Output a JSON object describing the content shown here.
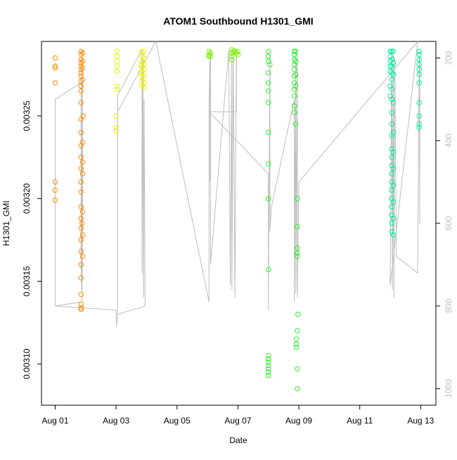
{
  "chart_data": {
    "type": "scatter",
    "title": "ATOM1 Southbound H1301_GMI",
    "xlabel": "Date",
    "ylabel": "H1301_GMI",
    "x_tick_labels": [
      "Aug 01",
      "Aug 03",
      "Aug 05",
      "Aug 07",
      "Aug 09",
      "Aug 11",
      "Aug 13"
    ],
    "x_tick_days": [
      1,
      3,
      5,
      7,
      9,
      11,
      13
    ],
    "xlim_days": [
      0.55,
      13.5
    ],
    "y_tick_labels": [
      "0.00310",
      "0.00315",
      "0.00320",
      "0.00325"
    ],
    "y_ticks": [
      0.0031,
      0.00315,
      0.0032,
      0.00325
    ],
    "ylim": [
      0.003075,
      0.003295
    ],
    "y2_tick_labels": [
      "200",
      "400",
      "600",
      "800",
      "1000"
    ],
    "y2_ticks": [
      200,
      400,
      600,
      800,
      1000
    ],
    "y2lim": [
      1040,
      160
    ],
    "y2_label_color": "#bdbdbd",
    "grid": false,
    "legend": "none",
    "line_color": "#bdbdbd",
    "series": [
      {
        "color": "#ff8c00",
        "points": [
          [
            1.0,
            0.003285
          ],
          [
            1.0,
            0.00328
          ],
          [
            1.0,
            0.003279
          ],
          [
            1.0,
            0.00327
          ],
          [
            1.0,
            0.00321
          ],
          [
            1.0,
            0.003205
          ],
          [
            1.0,
            0.003199
          ],
          [
            1.85,
            0.003289
          ],
          [
            1.85,
            0.003287
          ],
          [
            1.85,
            0.003284
          ],
          [
            1.85,
            0.003282
          ],
          [
            1.85,
            0.00328
          ],
          [
            1.85,
            0.003278
          ],
          [
            1.85,
            0.003276
          ],
          [
            1.85,
            0.003274
          ],
          [
            1.85,
            0.003271
          ],
          [
            1.85,
            0.003268
          ],
          [
            1.85,
            0.003265
          ],
          [
            1.85,
            0.003258
          ],
          [
            1.85,
            0.003248
          ],
          [
            1.85,
            0.00324
          ],
          [
            1.85,
            0.003232
          ],
          [
            1.85,
            0.003225
          ],
          [
            1.85,
            0.003218
          ],
          [
            1.85,
            0.00321
          ],
          [
            1.85,
            0.003204
          ],
          [
            1.85,
            0.003195
          ],
          [
            1.85,
            0.003188
          ],
          [
            1.85,
            0.003182
          ],
          [
            1.85,
            0.003175
          ],
          [
            1.85,
            0.003168
          ],
          [
            1.85,
            0.00316
          ],
          [
            1.85,
            0.003152
          ],
          [
            1.85,
            0.003142
          ],
          [
            1.85,
            0.003136
          ],
          [
            1.85,
            0.003134
          ],
          [
            1.85,
            0.003133
          ],
          [
            1.9,
            0.003288
          ],
          [
            1.9,
            0.003283
          ],
          [
            1.9,
            0.003279
          ],
          [
            1.9,
            0.003272
          ],
          [
            1.92,
            0.00325
          ],
          [
            1.9,
            0.003234
          ],
          [
            1.9,
            0.003222
          ],
          [
            1.9,
            0.003215
          ],
          [
            1.9,
            0.003192
          ],
          [
            1.9,
            0.003178
          ],
          [
            1.9,
            0.003165
          ],
          [
            1.88,
            0.003185
          ]
        ]
      },
      {
        "color": "#e6f000",
        "points": [
          [
            3.03,
            0.003289
          ],
          [
            3.03,
            0.003286
          ],
          [
            3.03,
            0.003283
          ],
          [
            3.03,
            0.00328
          ],
          [
            3.03,
            0.003277
          ],
          [
            3.03,
            0.003268
          ],
          [
            3.03,
            0.003266
          ],
          [
            3.0,
            0.00325
          ],
          [
            3.0,
            0.003243
          ],
          [
            3.0,
            0.003241
          ],
          [
            3.85,
            0.003289
          ],
          [
            3.85,
            0.003286
          ],
          [
            3.85,
            0.003283
          ],
          [
            3.85,
            0.00328
          ],
          [
            3.85,
            0.003277
          ],
          [
            3.85,
            0.003274
          ],
          [
            3.85,
            0.003271
          ],
          [
            3.85,
            0.003268
          ],
          [
            3.92,
            0.003289
          ],
          [
            3.92,
            0.003285
          ],
          [
            3.92,
            0.003281
          ],
          [
            3.92,
            0.003278
          ],
          [
            3.92,
            0.003274
          ],
          [
            3.92,
            0.00327
          ],
          [
            3.92,
            0.003267
          ],
          [
            3.8,
            0.003276
          ],
          [
            3.8,
            0.003281
          ]
        ]
      },
      {
        "color": "#7cf000",
        "points": [
          [
            6.05,
            0.003289
          ],
          [
            6.05,
            0.003287
          ],
          [
            6.05,
            0.003286
          ],
          [
            6.1,
            0.003288
          ],
          [
            6.1,
            0.003286
          ],
          [
            6.8,
            0.00329
          ],
          [
            6.8,
            0.003288
          ],
          [
            6.8,
            0.003286
          ],
          [
            6.8,
            0.003284
          ],
          [
            6.85,
            0.003289
          ],
          [
            6.9,
            0.003289
          ],
          [
            6.95,
            0.003288
          ],
          [
            7.0,
            0.003289
          ],
          [
            7.0,
            0.003287
          ]
        ]
      },
      {
        "color": "#2ef02e",
        "points": [
          [
            8.0,
            0.003289
          ],
          [
            8.0,
            0.003286
          ],
          [
            8.0,
            0.003283
          ],
          [
            8.05,
            0.003281
          ],
          [
            8.0,
            0.003276
          ],
          [
            8.0,
            0.00327
          ],
          [
            8.0,
            0.003265
          ],
          [
            8.0,
            0.003258
          ],
          [
            8.0,
            0.00324
          ],
          [
            8.0,
            0.003221
          ],
          [
            8.0,
            0.0032
          ],
          [
            8.0,
            0.003157
          ],
          [
            8.0,
            0.003105
          ],
          [
            8.0,
            0.003103
          ],
          [
            8.0,
            0.003101
          ],
          [
            8.0,
            0.003099
          ],
          [
            8.0,
            0.003097
          ],
          [
            8.0,
            0.003095
          ],
          [
            8.0,
            0.003093
          ],
          [
            8.85,
            0.003289
          ],
          [
            8.85,
            0.003287
          ],
          [
            8.85,
            0.003284
          ],
          [
            8.85,
            0.003281
          ],
          [
            8.85,
            0.003278
          ],
          [
            8.85,
            0.003274
          ],
          [
            8.85,
            0.00327
          ],
          [
            8.85,
            0.003266
          ],
          [
            8.85,
            0.003262
          ],
          [
            8.85,
            0.003256
          ],
          [
            8.85,
            0.003252
          ],
          [
            8.9,
            0.003289
          ],
          [
            8.9,
            0.003283
          ],
          [
            8.9,
            0.003275
          ],
          [
            8.9,
            0.003268
          ],
          [
            8.9,
            0.003245
          ],
          [
            8.95,
            0.0032
          ],
          [
            8.95,
            0.003183
          ],
          [
            8.95,
            0.00317
          ],
          [
            8.95,
            0.003167
          ],
          [
            8.95,
            0.003165
          ],
          [
            8.97,
            0.00313
          ],
          [
            8.95,
            0.00312
          ],
          [
            8.92,
            0.003115
          ],
          [
            8.92,
            0.003112
          ],
          [
            8.92,
            0.00311
          ],
          [
            8.95,
            0.003097
          ],
          [
            8.95,
            0.003085
          ]
        ]
      },
      {
        "color": "#00f0a0",
        "points": [
          [
            12.0,
            0.003289
          ],
          [
            12.0,
            0.003286
          ],
          [
            12.0,
            0.003283
          ],
          [
            12.0,
            0.00328
          ],
          [
            12.0,
            0.003277
          ],
          [
            12.0,
            0.003268
          ],
          [
            12.0,
            0.003262
          ],
          [
            12.05,
            0.003289
          ],
          [
            12.05,
            0.003284
          ],
          [
            12.05,
            0.00328
          ],
          [
            12.05,
            0.003276
          ],
          [
            12.05,
            0.003272
          ],
          [
            12.05,
            0.003266
          ],
          [
            12.05,
            0.00326
          ],
          [
            12.05,
            0.003252
          ],
          [
            12.05,
            0.003245
          ],
          [
            12.05,
            0.003238
          ],
          [
            12.05,
            0.00323
          ],
          [
            12.05,
            0.003225
          ],
          [
            12.05,
            0.00322
          ],
          [
            12.05,
            0.003215
          ],
          [
            12.05,
            0.00321
          ],
          [
            12.05,
            0.003205
          ],
          [
            12.05,
            0.0032
          ],
          [
            12.05,
            0.003195
          ],
          [
            12.05,
            0.00319
          ],
          [
            12.05,
            0.003185
          ],
          [
            12.05,
            0.00318
          ],
          [
            12.1,
            0.003289
          ],
          [
            12.1,
            0.003282
          ],
          [
            12.1,
            0.003275
          ],
          [
            12.1,
            0.003258
          ],
          [
            12.1,
            0.00324
          ],
          [
            12.1,
            0.003228
          ],
          [
            12.1,
            0.003218
          ],
          [
            12.1,
            0.003208
          ],
          [
            12.1,
            0.003198
          ],
          [
            12.1,
            0.003188
          ],
          [
            12.1,
            0.003178
          ],
          [
            12.95,
            0.003289
          ],
          [
            12.95,
            0.003287
          ],
          [
            12.95,
            0.003284
          ],
          [
            12.95,
            0.003281
          ],
          [
            12.95,
            0.003278
          ],
          [
            12.95,
            0.003275
          ],
          [
            12.95,
            0.00327
          ],
          [
            12.95,
            0.003258
          ],
          [
            12.95,
            0.00325
          ],
          [
            12.95,
            0.003245
          ],
          [
            12.95,
            0.003243
          ]
        ]
      }
    ],
    "right_axis_line": {
      "path": [
        [
          1.0,
          800
        ],
        [
          1.0,
          520
        ],
        [
          1.0,
          330
        ],
        [
          1.0,
          300
        ],
        [
          1.85,
          260
        ],
        [
          1.85,
          700
        ],
        [
          1.87,
          760
        ],
        [
          1.88,
          180
        ],
        [
          1.9,
          500
        ],
        [
          1.88,
          790
        ],
        [
          1.0,
          800
        ],
        [
          3.0,
          810
        ],
        [
          3.02,
          850
        ],
        [
          3.05,
          820
        ],
        [
          3.05,
          290
        ],
        [
          3.85,
          180
        ],
        [
          3.85,
          720
        ],
        [
          3.88,
          200
        ],
        [
          3.9,
          780
        ],
        [
          3.92,
          300
        ],
        [
          3.95,
          800
        ],
        [
          3.05,
          820
        ],
        [
          3.05,
          330
        ],
        [
          4.3,
          160
        ],
        [
          6.05,
          790
        ],
        [
          6.05,
          320
        ],
        [
          6.08,
          200
        ],
        [
          6.08,
          500
        ],
        [
          6.1,
          180
        ],
        [
          6.1,
          700
        ],
        [
          6.7,
          180
        ],
        [
          6.75,
          750
        ],
        [
          6.8,
          180
        ],
        [
          6.8,
          760
        ],
        [
          6.85,
          200
        ],
        [
          6.9,
          780
        ],
        [
          6.95,
          180
        ],
        [
          6.95,
          330
        ],
        [
          6.05,
          330
        ],
        [
          8.0,
          480
        ],
        [
          8.0,
          810
        ],
        [
          8.05,
          190
        ],
        [
          8.05,
          620
        ],
        [
          8.1,
          560
        ],
        [
          8.85,
          300
        ],
        [
          8.85,
          790
        ],
        [
          8.9,
          180
        ],
        [
          8.9,
          770
        ],
        [
          8.95,
          190
        ],
        [
          8.95,
          780
        ],
        [
          9.0,
          500
        ],
        [
          12.9,
          160
        ],
        [
          12.0,
          750
        ],
        [
          12.05,
          180
        ],
        [
          12.07,
          760
        ],
        [
          12.1,
          190
        ],
        [
          12.12,
          780
        ],
        [
          12.15,
          200
        ],
        [
          12.2,
          680
        ],
        [
          12.9,
          720
        ],
        [
          12.95,
          190
        ],
        [
          12.97,
          600
        ],
        [
          12.97,
          200
        ]
      ]
    }
  }
}
